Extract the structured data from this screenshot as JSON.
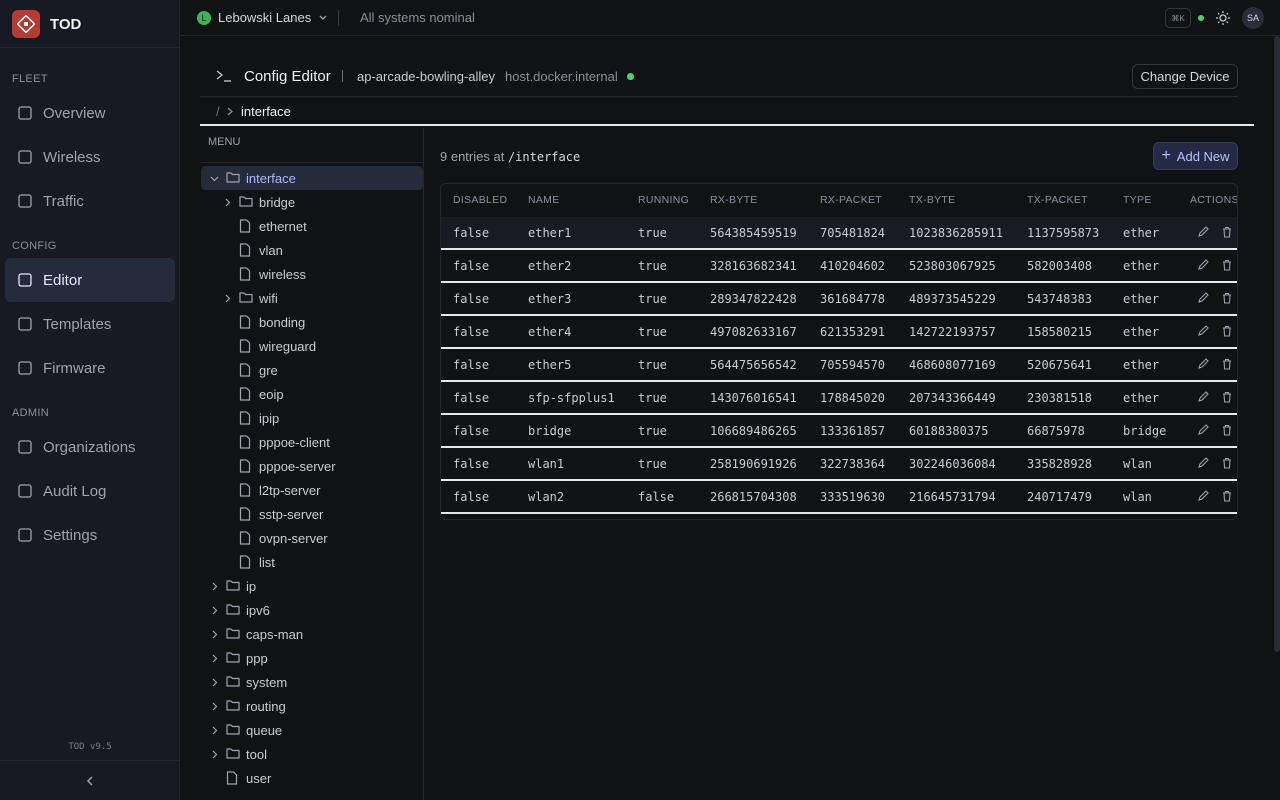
{
  "sidebar": {
    "brand": "TOD",
    "sections": [
      {
        "label": "FLEET",
        "items": [
          "Overview",
          "Wireless",
          "Traffic"
        ]
      },
      {
        "label": "CONFIG",
        "items": [
          "Editor",
          "Templates",
          "Firmware"
        ]
      },
      {
        "label": "ADMIN",
        "items": [
          "Organizations",
          "Audit Log",
          "Settings"
        ]
      }
    ],
    "active": "Editor",
    "version": "TOD v9.5"
  },
  "topbar": {
    "org_initial": "L",
    "org": "Lebowski Lanes",
    "status": "All systems nominal",
    "shortcut": "⌘K",
    "user": "SA"
  },
  "editor": {
    "title": "Config Editor",
    "device": "ap-arcade-bowling-alley",
    "host": "host.docker.internal",
    "button": "Change Device",
    "breadcrumb_root": "/",
    "breadcrumb": "interface"
  },
  "menu": {
    "label": "MENU",
    "tree": [
      {
        "label": "interface",
        "kind": "folder",
        "open": true,
        "children": [
          {
            "label": "bridge",
            "kind": "folder"
          },
          {
            "label": "ethernet",
            "kind": "file"
          },
          {
            "label": "vlan",
            "kind": "file"
          },
          {
            "label": "wireless",
            "kind": "file"
          },
          {
            "label": "wifi",
            "kind": "folder"
          },
          {
            "label": "bonding",
            "kind": "file"
          },
          {
            "label": "wireguard",
            "kind": "file"
          },
          {
            "label": "gre",
            "kind": "file"
          },
          {
            "label": "eoip",
            "kind": "file"
          },
          {
            "label": "ipip",
            "kind": "file"
          },
          {
            "label": "pppoe-client",
            "kind": "file"
          },
          {
            "label": "pppoe-server",
            "kind": "file"
          },
          {
            "label": "l2tp-server",
            "kind": "file"
          },
          {
            "label": "sstp-server",
            "kind": "file"
          },
          {
            "label": "ovpn-server",
            "kind": "file"
          },
          {
            "label": "list",
            "kind": "file"
          }
        ]
      },
      {
        "label": "ip",
        "kind": "folder"
      },
      {
        "label": "ipv6",
        "kind": "folder"
      },
      {
        "label": "caps-man",
        "kind": "folder"
      },
      {
        "label": "ppp",
        "kind": "folder"
      },
      {
        "label": "system",
        "kind": "folder"
      },
      {
        "label": "routing",
        "kind": "folder"
      },
      {
        "label": "queue",
        "kind": "folder"
      },
      {
        "label": "tool",
        "kind": "folder"
      },
      {
        "label": "user",
        "kind": "file"
      }
    ]
  },
  "table": {
    "summary": "9 entries at",
    "path": "/interface",
    "add": "Add New",
    "columns": [
      "DISABLED",
      "NAME",
      "RUNNING",
      "RX-BYTE",
      "RX-PACKET",
      "TX-BYTE",
      "TX-PACKET",
      "TYPE",
      "ACTIONS"
    ],
    "rows": [
      [
        "false",
        "ether1",
        "true",
        564385459519,
        705481824,
        1023836285911,
        1137595873,
        "ether"
      ],
      [
        "false",
        "ether2",
        "true",
        328163682341,
        410204602,
        523803067925,
        582003408,
        "ether"
      ],
      [
        "false",
        "ether3",
        "true",
        289347822428,
        361684778,
        489373545229,
        543748383,
        "ether"
      ],
      [
        "false",
        "ether4",
        "true",
        497082633167,
        621353291,
        142722193757,
        158580215,
        "ether"
      ],
      [
        "false",
        "ether5",
        "true",
        564475656542,
        705594570,
        468608077169,
        520675641,
        "ether"
      ],
      [
        "false",
        "sfp-sfpplus1",
        "true",
        143076016541,
        178845020,
        207343366449,
        230381518,
        "ether"
      ],
      [
        "false",
        "bridge",
        "true",
        106689486265,
        133361857,
        60188380375,
        66875978,
        "bridge"
      ],
      [
        "false",
        "wlan1",
        "true",
        258190691926,
        322738364,
        302246036084,
        335828928,
        "wlan"
      ],
      [
        "false",
        "wlan2",
        "false",
        266815704308,
        333519630,
        216645731794,
        240717479,
        "wlan"
      ]
    ]
  }
}
